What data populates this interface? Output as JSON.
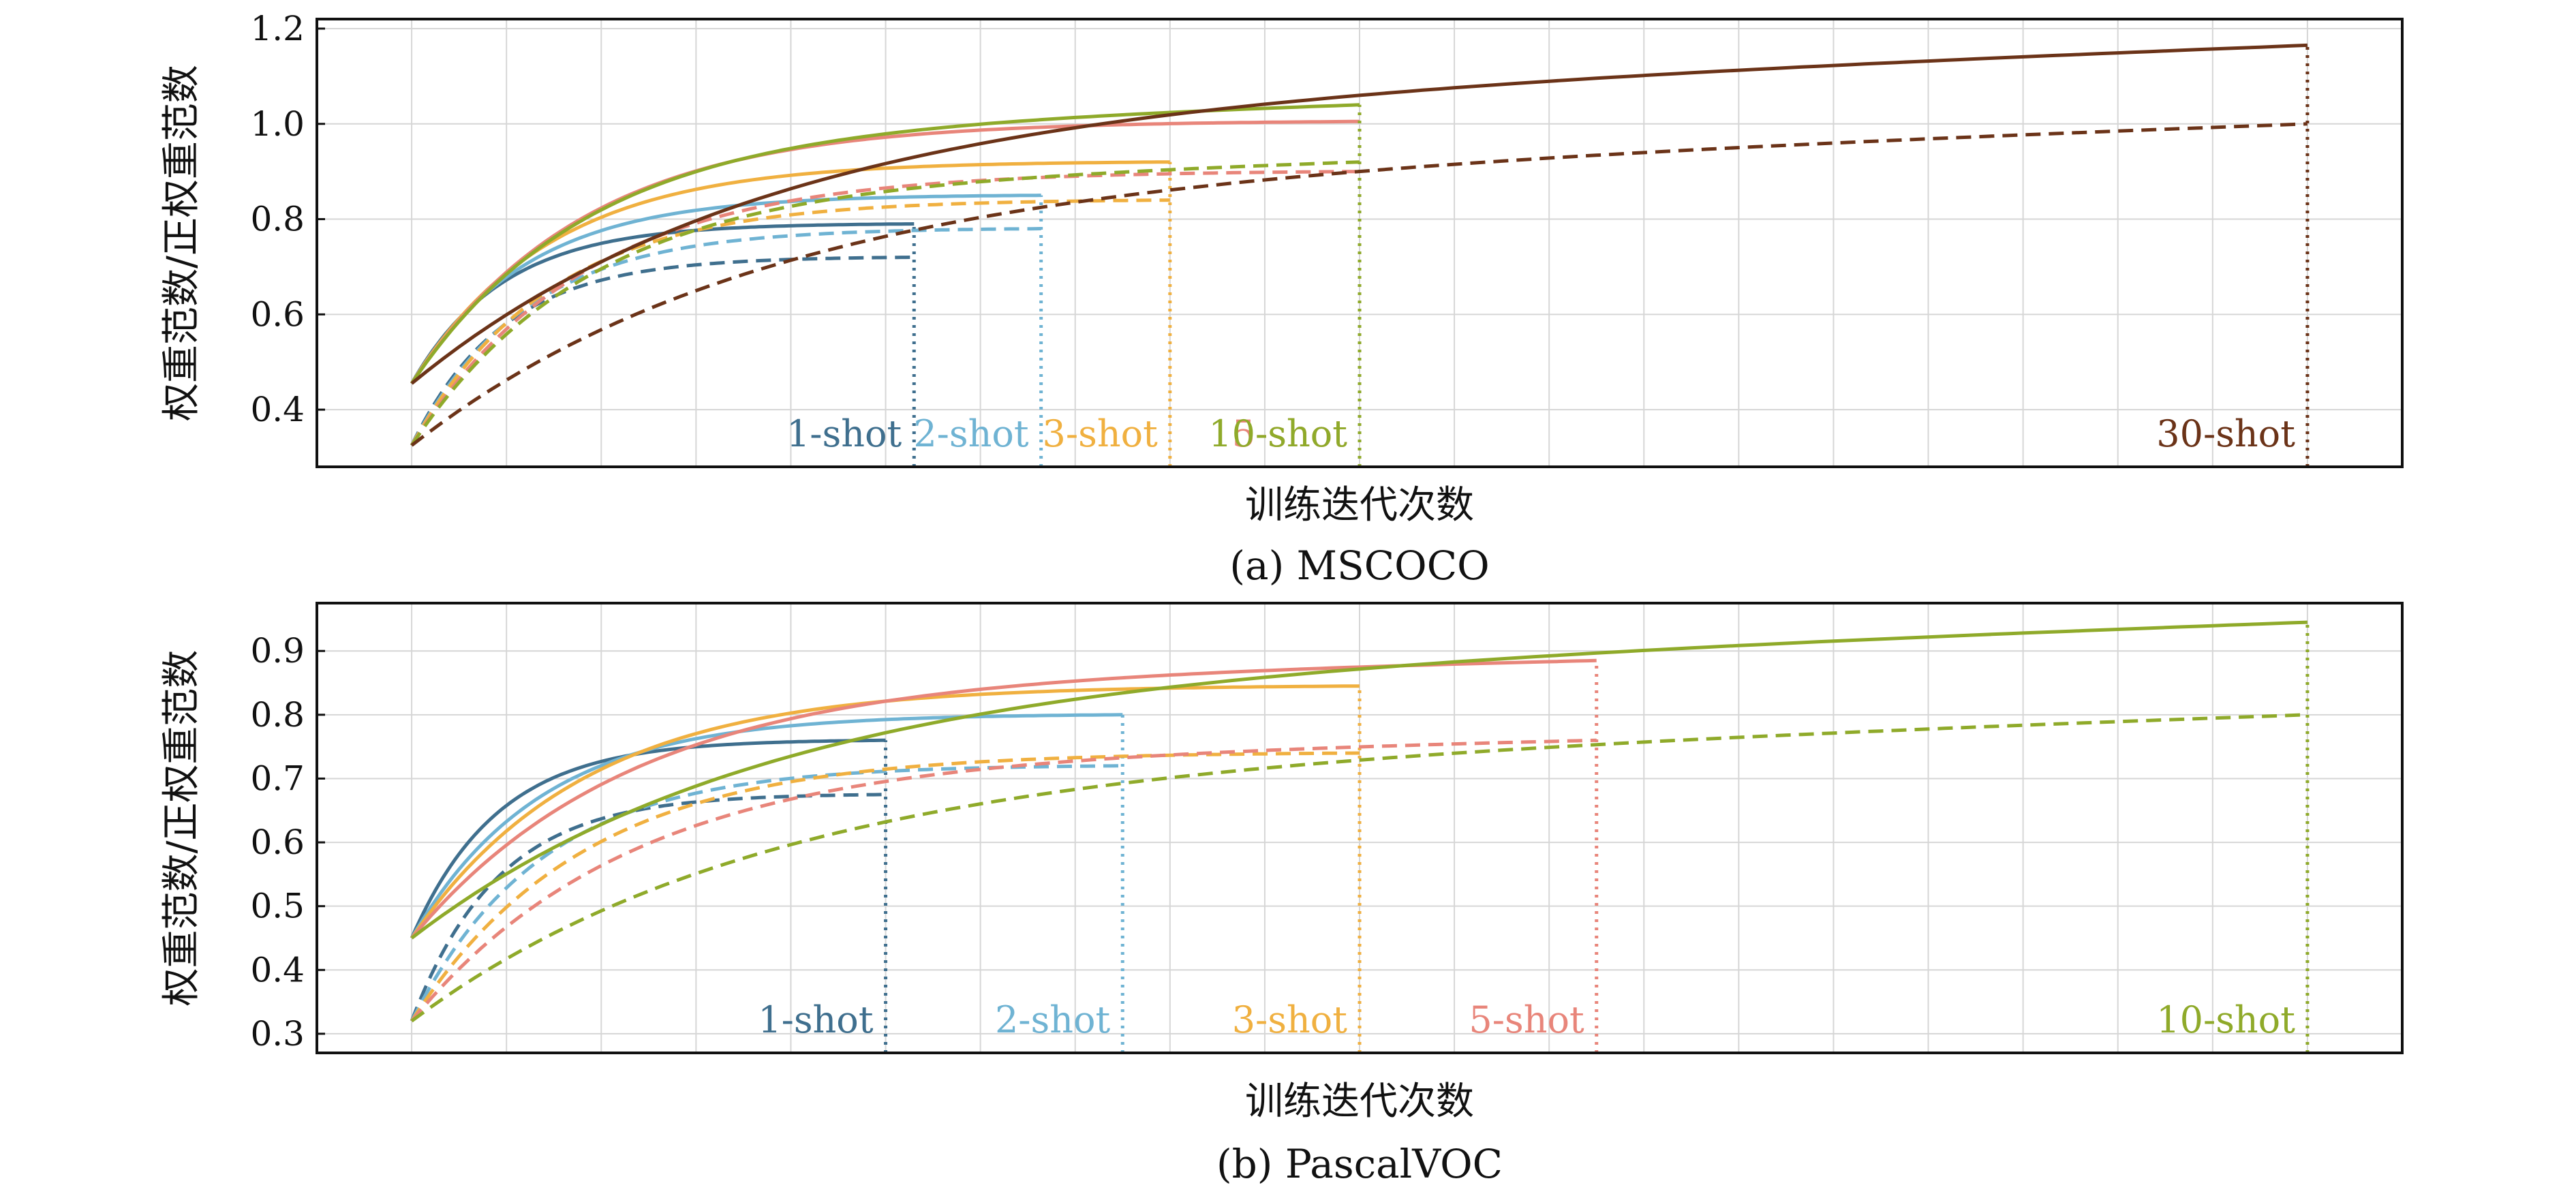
{
  "chart_data": [
    {
      "type": "line",
      "caption": "(a) MSCOCO",
      "xlabel": "训练迭代次数",
      "ylabel": "权重范数/正权重范数",
      "yticks": [
        "0.4",
        "0.6",
        "0.8",
        "1.0",
        "1.2"
      ],
      "yticks_num": [
        0.4,
        0.6,
        0.8,
        1.0,
        1.2
      ],
      "ylim": [
        0.28,
        1.22
      ],
      "xlim": [
        -0.05,
        1.05
      ],
      "grid": true,
      "series": [
        {
          "name": "1-shot",
          "color": "#3f6f8e",
          "end_x": 0.265,
          "solid_start": 0.455,
          "solid_end": 0.79,
          "dashed_start": 0.325,
          "dashed_end": 0.72,
          "end_ramp": 0.0
        },
        {
          "name": "2-shot",
          "color": "#6fb3d3",
          "end_x": 0.332,
          "solid_start": 0.455,
          "solid_end": 0.85,
          "dashed_start": 0.325,
          "dashed_end": 0.78,
          "end_ramp": 0.0
        },
        {
          "name": "3-shot",
          "color": "#f0b040",
          "end_x": 0.4,
          "solid_start": 0.455,
          "solid_end": 0.92,
          "dashed_start": 0.325,
          "dashed_end": 0.84,
          "end_ramp": 0.0
        },
        {
          "name": "5-shot",
          "color": "#e8857a",
          "end_x": 0.5,
          "solid_start": 0.455,
          "solid_end": 1.005,
          "dashed_start": 0.325,
          "dashed_end": 0.9,
          "end_ramp": 0.0
        },
        {
          "name": "10-shot",
          "color": "#8faa2a",
          "end_x": 0.5,
          "solid_start": 0.455,
          "solid_end": 1.04,
          "dashed_start": 0.325,
          "dashed_end": 0.92,
          "end_ramp": 0.1
        },
        {
          "name": "30-shot",
          "color": "#6b3318",
          "end_x": 1.0,
          "solid_start": 0.455,
          "solid_end": 1.165,
          "dashed_start": 0.325,
          "dashed_end": 1.0,
          "end_ramp": 0.2
        }
      ]
    },
    {
      "type": "line",
      "caption": "(b) PascalVOC",
      "xlabel": "训练迭代次数",
      "ylabel": "权重范数/正权重范数",
      "yticks": [
        "0.3",
        "0.4",
        "0.5",
        "0.6",
        "0.7",
        "0.8",
        "0.9"
      ],
      "yticks_num": [
        0.3,
        0.4,
        0.5,
        0.6,
        0.7,
        0.8,
        0.9
      ],
      "ylim": [
        0.27,
        0.975
      ],
      "xlim": [
        -0.05,
        1.05
      ],
      "grid": true,
      "series": [
        {
          "name": "1-shot",
          "color": "#3f6f8e",
          "end_x": 0.25,
          "solid_start": 0.45,
          "solid_end": 0.76,
          "dashed_start": 0.32,
          "dashed_end": 0.675,
          "end_ramp": 0.0
        },
        {
          "name": "2-shot",
          "color": "#6fb3d3",
          "end_x": 0.375,
          "solid_start": 0.45,
          "solid_end": 0.8,
          "dashed_start": 0.32,
          "dashed_end": 0.72,
          "end_ramp": 0.0
        },
        {
          "name": "3-shot",
          "color": "#f0b040",
          "end_x": 0.5,
          "solid_start": 0.45,
          "solid_end": 0.845,
          "dashed_start": 0.32,
          "dashed_end": 0.74,
          "end_ramp": 0.0
        },
        {
          "name": "5-shot",
          "color": "#e8857a",
          "end_x": 0.625,
          "solid_start": 0.45,
          "solid_end": 0.885,
          "dashed_start": 0.32,
          "dashed_end": 0.76,
          "end_ramp": 0.08
        },
        {
          "name": "10-shot",
          "color": "#8faa2a",
          "end_x": 1.0,
          "solid_start": 0.45,
          "solid_end": 0.945,
          "dashed_start": 0.32,
          "dashed_end": 0.8,
          "end_ramp": 0.2
        }
      ]
    }
  ]
}
